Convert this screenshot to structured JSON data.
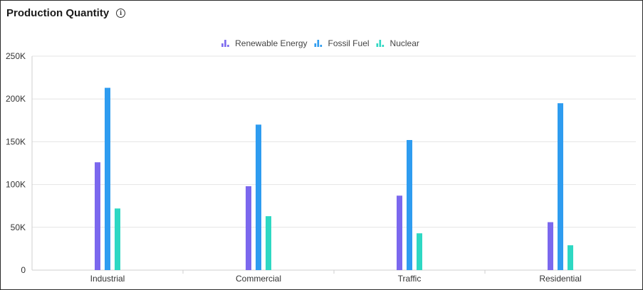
{
  "header": {
    "title": "Production Quantity",
    "info_icon": "info-circle-icon"
  },
  "chart_data": {
    "type": "bar",
    "categories": [
      "Industrial",
      "Commercial",
      "Traffic",
      "Residential"
    ],
    "series": [
      {
        "name": "Renewable Energy",
        "color": "#7b68ee",
        "values": [
          126000,
          98000,
          87000,
          56000
        ]
      },
      {
        "name": "Fossil Fuel",
        "color": "#2e9cf0",
        "values": [
          213000,
          170000,
          152000,
          195000
        ]
      },
      {
        "name": "Nuclear",
        "color": "#2ed8c3",
        "values": [
          72000,
          63000,
          43000,
          29000
        ]
      }
    ],
    "ylim": [
      0,
      250000
    ],
    "yticks": [
      0,
      50000,
      100000,
      150000,
      200000,
      250000
    ],
    "ytick_labels": [
      "0",
      "50K",
      "100K",
      "150K",
      "200K",
      "250K"
    ],
    "grid": true,
    "legend_position": "top-center"
  }
}
